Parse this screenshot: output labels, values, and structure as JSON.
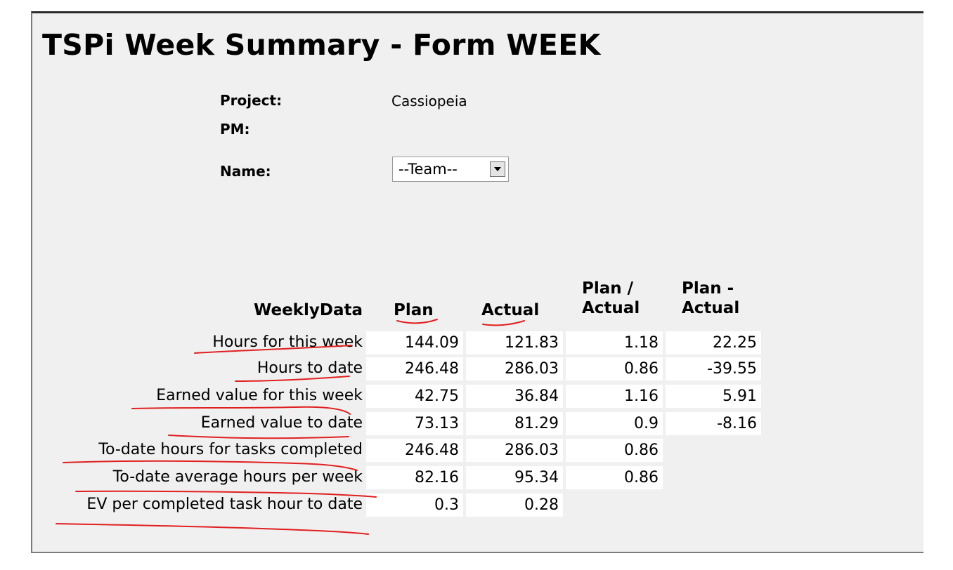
{
  "form": {
    "title": "TSPi Week Summary - Form WEEK",
    "project_label": "Project:",
    "project_value": "Cassiopeia",
    "pm_label": "PM:",
    "pm_value": "",
    "name_label": "Name:",
    "name_selected": "--Team--"
  },
  "table": {
    "headers": {
      "weekly": "WeeklyData",
      "plan": "Plan",
      "actual": "Actual",
      "plan_over_actual_1": "Plan /",
      "plan_over_actual_2": "Actual",
      "plan_minus_actual_1": "Plan -",
      "plan_minus_actual_2": "Actual"
    },
    "rows": [
      {
        "label": "Hours for this week",
        "plan": "144.09",
        "actual": "121.83",
        "ratio": "1.18",
        "diff": "22.25"
      },
      {
        "label": "Hours to date",
        "plan": "246.48",
        "actual": "286.03",
        "ratio": "0.86",
        "diff": "-39.55"
      },
      {
        "label": "Earned value for this week",
        "plan": "42.75",
        "actual": "36.84",
        "ratio": "1.16",
        "diff": "5.91"
      },
      {
        "label": "Earned value to date",
        "plan": "73.13",
        "actual": "81.29",
        "ratio": "0.9",
        "diff": "-8.16"
      },
      {
        "label": "To-date hours for tasks completed",
        "plan": "246.48",
        "actual": "286.03",
        "ratio": "0.86",
        "diff": ""
      },
      {
        "label": "To-date average hours per week",
        "plan": "82.16",
        "actual": "95.34",
        "ratio": "0.86",
        "diff": ""
      },
      {
        "label": "EV per completed task hour to date",
        "plan": "0.3",
        "actual": "0.28",
        "ratio": "",
        "diff": ""
      }
    ]
  },
  "colors": {
    "panel_bg": "#f0f0f0",
    "cell_bg": "#ffffff",
    "annotation": "#e02020"
  }
}
